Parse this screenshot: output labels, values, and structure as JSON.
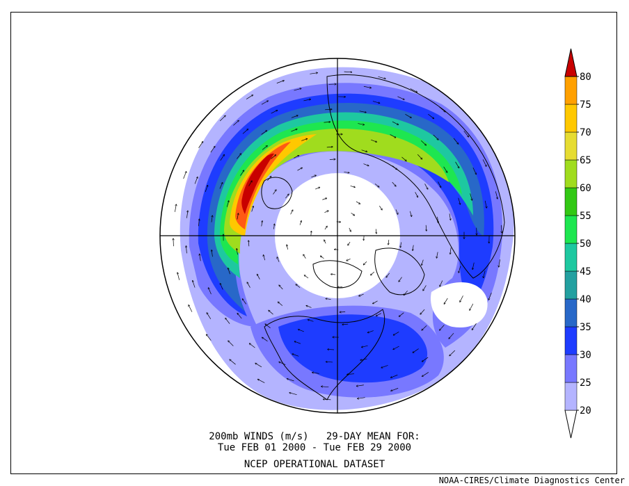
{
  "caption": {
    "title": "200mb WINDS (m/s)   29-DAY MEAN FOR:",
    "dates": "Tue FEB 01 2000 - Tue FEB 29 2000",
    "dataset": "NCEP OPERATIONAL DATASET"
  },
  "credit": "NOAA-CIRES/Climate Diagnostics Center",
  "colorbar": {
    "levels": [
      "20",
      "25",
      "30",
      "35",
      "40",
      "45",
      "50",
      "55",
      "60",
      "65",
      "70",
      "75",
      "80"
    ],
    "colors": [
      "#ffffff",
      "#b4b4ff",
      "#7878ff",
      "#1e3cff",
      "#2868c8",
      "#23a0a0",
      "#1ec8a0",
      "#1ee650",
      "#32c814",
      "#a0dc1e",
      "#e6dc32",
      "#ffc800",
      "#ffa000",
      "#ff5a14",
      "#c80000"
    ]
  },
  "colors": {
    "frame": "#000000",
    "outline": "#000000",
    "band_weak": "#b4b4ff",
    "band_moderate": "#7878ff",
    "band_strong": "#1e3cff"
  }
}
